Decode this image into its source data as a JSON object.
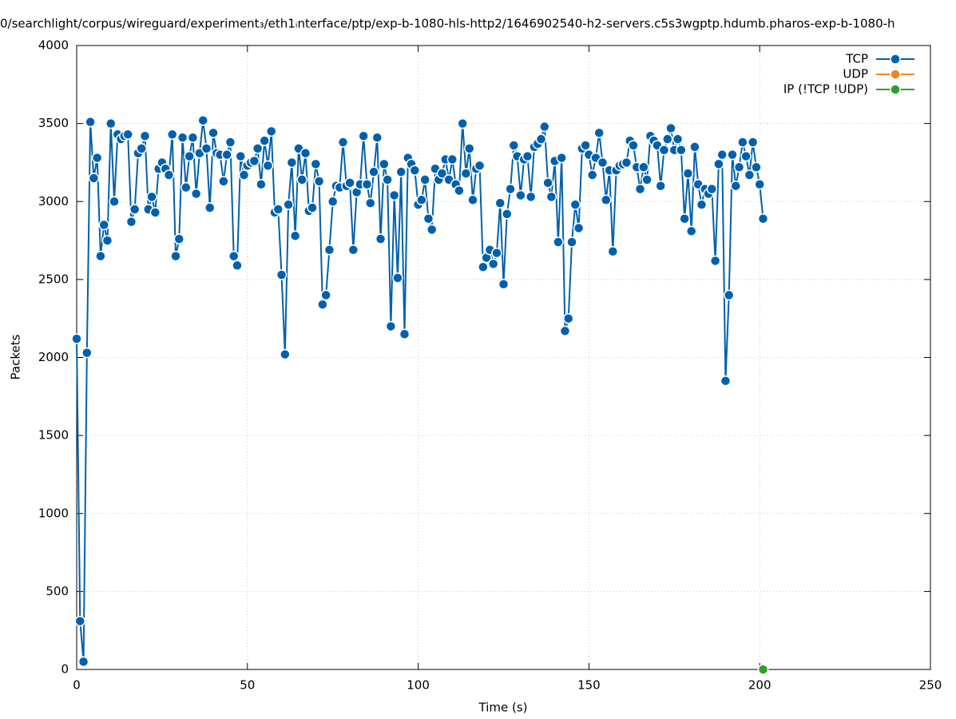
{
  "chart_data": {
    "type": "line",
    "title": "0/searchlight/corpus/wireguard/experiment₃/eth1ᵢnterface/ptp/exp-b-1080-hls-http2/1646902540-h2-servers.c5s3wgptp.hdumb.pharos-exp-b-1080-h",
    "xlabel": "Time (s)",
    "ylabel": "Packets",
    "xlim": [
      0,
      250
    ],
    "xticks": [
      0,
      50,
      100,
      150,
      200,
      250
    ],
    "ylim": [
      0,
      4000
    ],
    "yticks": [
      0,
      500,
      1000,
      1500,
      2000,
      2500,
      3000,
      3500,
      4000
    ],
    "grid": true,
    "legend": "top-right",
    "series": [
      {
        "name": "TCP",
        "color": "#0060ad",
        "x": [
          0,
          1,
          2,
          3,
          4,
          5,
          6,
          7,
          8,
          9,
          10,
          11,
          12,
          13,
          14,
          15,
          16,
          17,
          18,
          19,
          20,
          21,
          22,
          23,
          24,
          25,
          26,
          27,
          28,
          29,
          30,
          31,
          32,
          33,
          34,
          35,
          36,
          37,
          38,
          39,
          40,
          41,
          42,
          43,
          44,
          45,
          46,
          47,
          48,
          49,
          50,
          51,
          52,
          53,
          54,
          55,
          56,
          57,
          58,
          59,
          60,
          61,
          62,
          63,
          64,
          65,
          66,
          67,
          68,
          69,
          70,
          71,
          72,
          73,
          74,
          75,
          76,
          77,
          78,
          79,
          80,
          81,
          82,
          83,
          84,
          85,
          86,
          87,
          88,
          89,
          90,
          91,
          92,
          93,
          94,
          95,
          96,
          97,
          98,
          99,
          100,
          101,
          102,
          103,
          104,
          105,
          106,
          107,
          108,
          109,
          110,
          111,
          112,
          113,
          114,
          115,
          116,
          117,
          118,
          119,
          120,
          121,
          122,
          123,
          124,
          125,
          126,
          127,
          128,
          129,
          130,
          131,
          132,
          133,
          134,
          135,
          136,
          137,
          138,
          139,
          140,
          141,
          142,
          143,
          144,
          145,
          146,
          147,
          148,
          149,
          150,
          151,
          152,
          153,
          154,
          155,
          156,
          157,
          158,
          159,
          160,
          161,
          162,
          163,
          164,
          165,
          166,
          167,
          168,
          169,
          170,
          171,
          172,
          173,
          174,
          175,
          176,
          177,
          178,
          179,
          180,
          181,
          182,
          183,
          184,
          185,
          186,
          187,
          188,
          189,
          190,
          191,
          192,
          193,
          194,
          195,
          196,
          197,
          198,
          199,
          200,
          201
        ],
        "values": [
          2120,
          310,
          50,
          2030,
          3510,
          3150,
          3280,
          2650,
          2850,
          2750,
          3500,
          3000,
          3430,
          3400,
          3420,
          3430,
          2870,
          2950,
          3310,
          3340,
          3420,
          2950,
          3030,
          2930,
          3210,
          3250,
          3210,
          3170,
          3430,
          2650,
          2760,
          3410,
          3090,
          3290,
          3410,
          3050,
          3310,
          3520,
          3340,
          2960,
          3440,
          3310,
          3300,
          3130,
          3300,
          3380,
          2650,
          2590,
          3290,
          3170,
          3230,
          3250,
          3260,
          3340,
          3110,
          3390,
          3230,
          3450,
          2930,
          2950,
          2530,
          2020,
          2980,
          3250,
          2780,
          3340,
          3140,
          3310,
          2940,
          2960,
          3240,
          3130,
          2340,
          2400,
          2690,
          3000,
          3100,
          3090,
          3380,
          3100,
          3120,
          2690,
          3060,
          3110,
          3420,
          3110,
          2990,
          3190,
          3410,
          2760,
          3240,
          3140,
          2200,
          3040,
          2510,
          3190,
          2150,
          3280,
          3240,
          3200,
          2980,
          3010,
          3140,
          2890,
          2820,
          3210,
          3140,
          3180,
          3270,
          3140,
          3270,
          3110,
          3070,
          3500,
          3180,
          3340,
          3010,
          3210,
          3230,
          2580,
          2640,
          2690,
          2600,
          2670,
          2990,
          2470,
          2920,
          3080,
          3360,
          3290,
          3040,
          3270,
          3290,
          3030,
          3350,
          3370,
          3400,
          3480,
          3120,
          3030,
          3260,
          2740,
          3280,
          2170,
          2250,
          2740,
          2980,
          2830,
          3340,
          3360,
          3300,
          3170,
          3280,
          3440,
          3250,
          3010,
          3200,
          2680,
          3200,
          3230,
          3240,
          3250,
          3390,
          3360,
          3220,
          3080,
          3220,
          3140,
          3420,
          3390,
          3360,
          3100,
          3330,
          3400,
          3470,
          3330,
          3400,
          3330,
          2890,
          3180,
          2810,
          3350,
          3110,
          2980,
          3080,
          3050,
          3080,
          2620,
          3240,
          3300,
          1850,
          2400,
          3300,
          3100,
          3220,
          3380,
          3290,
          3170,
          3380,
          3220,
          3110,
          2890
        ]
      },
      {
        "name": "UDP",
        "color": "#f28522",
        "x": [],
        "values": []
      },
      {
        "name": "IP (!TCP  !UDP)",
        "color": "#2ca02c",
        "x": [
          201
        ],
        "values": [
          0
        ]
      }
    ]
  }
}
